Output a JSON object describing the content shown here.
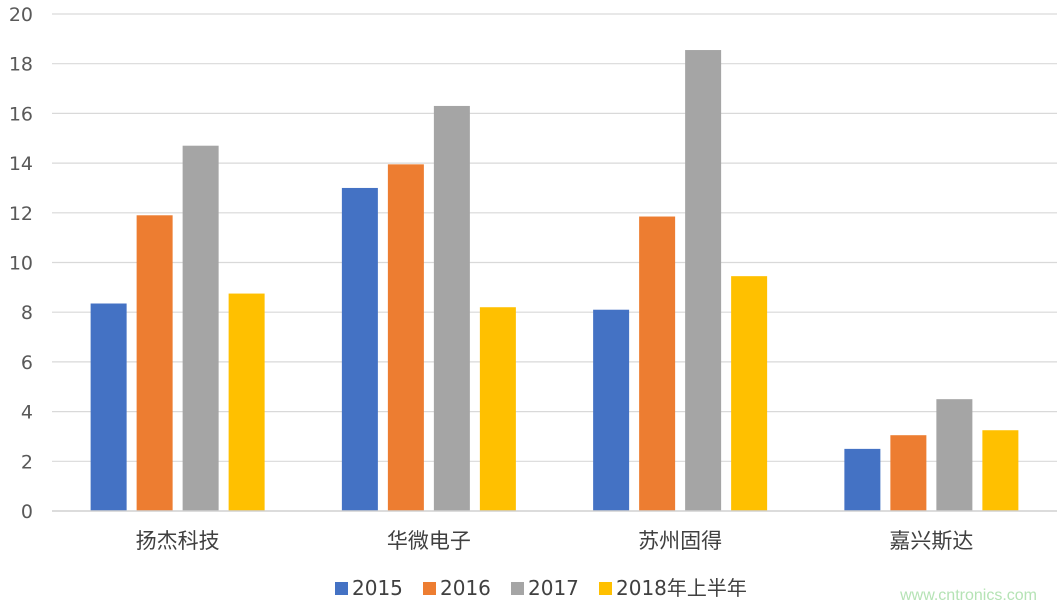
{
  "chart_data": {
    "type": "bar",
    "title": "",
    "xlabel": "",
    "ylabel": "",
    "categories": [
      "扬杰科技",
      "华微电子",
      "苏州固得",
      "嘉兴斯达"
    ],
    "series": [
      {
        "name": "2015",
        "color": "#4472c4",
        "values": [
          8.35,
          13.0,
          8.1,
          2.5
        ]
      },
      {
        "name": "2016",
        "color": "#ed7d31",
        "values": [
          11.9,
          13.95,
          11.85,
          3.05
        ]
      },
      {
        "name": "2017",
        "color": "#a5a5a5",
        "values": [
          14.7,
          16.3,
          18.55,
          4.5
        ]
      },
      {
        "name": "2018年上半年",
        "color": "#ffc000",
        "values": [
          8.75,
          8.2,
          9.45,
          3.25
        ]
      }
    ],
    "ylim": [
      0,
      20
    ],
    "yticks": [
      0,
      2,
      4,
      6,
      8,
      10,
      12,
      14,
      16,
      18,
      20
    ],
    "grid": true,
    "legend_position": "bottom"
  },
  "watermark": "www.cntronics.com"
}
